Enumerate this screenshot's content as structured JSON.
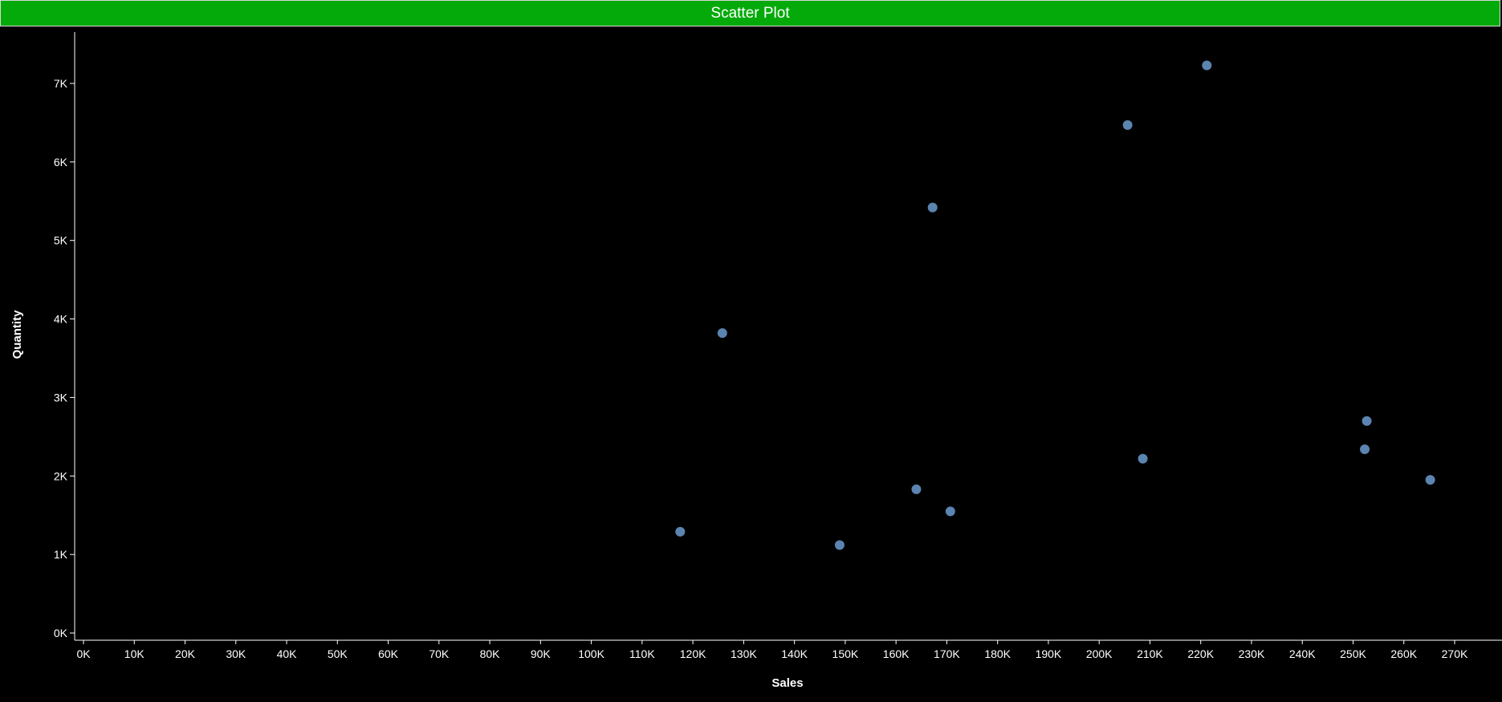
{
  "colors": {
    "background": "#000000",
    "title_bar": "#04aa0a",
    "title_text": "#ffffff",
    "axis": "#ffffff",
    "point": "#5b84b1"
  },
  "chart_data": {
    "type": "scatter",
    "title": "Scatter Plot",
    "xlabel": "Sales",
    "ylabel": "Quantity",
    "xlim": [
      0,
      275000
    ],
    "ylim": [
      0,
      7600
    ],
    "x_ticks": [
      0,
      10000,
      20000,
      30000,
      40000,
      50000,
      60000,
      70000,
      80000,
      90000,
      100000,
      110000,
      120000,
      130000,
      140000,
      150000,
      160000,
      170000,
      180000,
      190000,
      200000,
      210000,
      220000,
      230000,
      240000,
      250000,
      260000,
      270000
    ],
    "x_tick_labels": [
      "0K",
      "10K",
      "20K",
      "30K",
      "40K",
      "50K",
      "60K",
      "70K",
      "80K",
      "90K",
      "100K",
      "110K",
      "120K",
      "130K",
      "140K",
      "150K",
      "160K",
      "170K",
      "180K",
      "190K",
      "200K",
      "210K",
      "220K",
      "230K",
      "240K",
      "250K",
      "260K",
      "270K"
    ],
    "y_ticks": [
      0,
      1000,
      2000,
      3000,
      4000,
      5000,
      6000,
      7000
    ],
    "y_tick_labels": [
      "0K",
      "1K",
      "2K",
      "3K",
      "4K",
      "5K",
      "6K",
      "7K"
    ],
    "grid": false,
    "points": [
      {
        "x": 117500,
        "y": 1290
      },
      {
        "x": 125800,
        "y": 3820
      },
      {
        "x": 148900,
        "y": 1120
      },
      {
        "x": 164000,
        "y": 1830
      },
      {
        "x": 167200,
        "y": 5420
      },
      {
        "x": 170700,
        "y": 1550
      },
      {
        "x": 205600,
        "y": 6470
      },
      {
        "x": 208600,
        "y": 2220
      },
      {
        "x": 221200,
        "y": 7230
      },
      {
        "x": 252300,
        "y": 2340
      },
      {
        "x": 252700,
        "y": 2700
      },
      {
        "x": 265200,
        "y": 1950
      }
    ]
  }
}
